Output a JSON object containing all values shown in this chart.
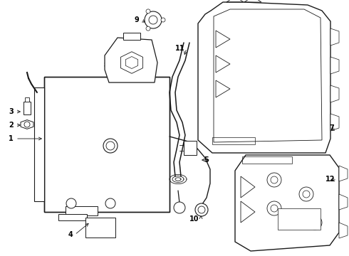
{
  "bg_color": "#ffffff",
  "lc": "#1a1a1a",
  "lw": 0.7,
  "figsize": [
    4.9,
    3.6
  ],
  "dpi": 100,
  "label_fontsize": 7.0
}
